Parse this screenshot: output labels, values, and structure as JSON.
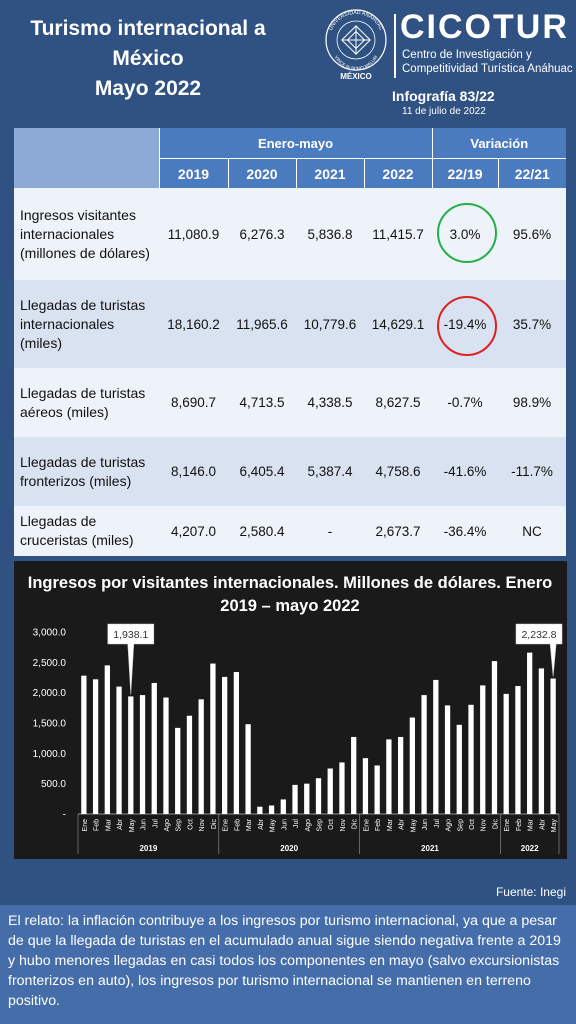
{
  "header": {
    "title_lines": [
      "Turismo internacional a",
      "México",
      "Mayo 2022"
    ],
    "logo_name": "CICOTUR",
    "logo_sub_lines": [
      "Centro de Investigación y",
      "Competitividad Turística Anáhuac"
    ],
    "seal_text": "UNIVERSIDAD ANÁHUAC",
    "seal_motto": "VINCE IN BONO MALUM",
    "seal_country": "MÉXICO",
    "infografia": "Infografía 83/22",
    "date": "11 de julio de 2022"
  },
  "table": {
    "group_headers": [
      "Enero-mayo",
      "Variación"
    ],
    "columns": [
      "2019",
      "2020",
      "2021",
      "2022",
      "22/19",
      "22/21"
    ],
    "rows": [
      {
        "label": "Ingresos visitantes internacionales (millones de dólares)",
        "values": [
          "11,080.9",
          "6,276.3",
          "5,836.8",
          "11,415.7",
          "3.0%",
          "95.6%"
        ]
      },
      {
        "label": "Llegadas de turistas internacionales (miles)",
        "values": [
          "18,160.2",
          "11,965.6",
          "10,779.6",
          "14,629.1",
          "-19.4%",
          "35.7%"
        ]
      },
      {
        "label": "Llegadas de turistas aéreos (miles)",
        "values": [
          "8,690.7",
          "4,713.5",
          "4,338.5",
          "8,627.5",
          "-0.7%",
          "98.9%"
        ]
      },
      {
        "label": "Llegadas de turistas fronterizos (miles)",
        "values": [
          "8,146.0",
          "6,405.4",
          "5,387.4",
          "4,758.6",
          "-41.6%",
          "-11.7%"
        ]
      },
      {
        "label": "Llegadas de cruceristas (miles)",
        "values": [
          "4,207.0",
          "2,580.4",
          "-",
          "2,673.7",
          "-36.4%",
          "NC"
        ]
      }
    ],
    "highlight_colors": {
      "positive": "#22b04a",
      "negative": "#e02020"
    }
  },
  "chart_data": {
    "type": "bar",
    "title": "Ingresos por visitantes internacionales. Millones de dólares. Enero 2019 – mayo 2022",
    "ylim": [
      0,
      3000
    ],
    "yticks": [
      "3,000.0",
      "2,500.0",
      "2,000.0",
      "1,500.0",
      "1,000.0",
      "500.0",
      "-"
    ],
    "month_labels": [
      "Ene",
      "Feb",
      "Mar",
      "Abr",
      "May",
      "Jun",
      "Jul",
      "Ago",
      "Sep",
      "Oct",
      "Nov",
      "Dic"
    ],
    "years": [
      "2019",
      "2020",
      "2021",
      "2022"
    ],
    "categories": [
      "Ene 2019",
      "Feb 2019",
      "Mar 2019",
      "Abr 2019",
      "May 2019",
      "Jun 2019",
      "Jul 2019",
      "Ago 2019",
      "Sep 2019",
      "Oct 2019",
      "Nov 2019",
      "Dic 2019",
      "Ene 2020",
      "Feb 2020",
      "Mar 2020",
      "Abr 2020",
      "May 2020",
      "Jun 2020",
      "Jul 2020",
      "Ago 2020",
      "Sep 2020",
      "Oct 2020",
      "Nov 2020",
      "Dic 2020",
      "Ene 2021",
      "Feb 2021",
      "Mar 2021",
      "Abr 2021",
      "May 2021",
      "Jun 2021",
      "Jul 2021",
      "Ago 2021",
      "Sep 2021",
      "Oct 2021",
      "Nov 2021",
      "Dic 2021",
      "Ene 2022",
      "Feb 2022",
      "Mar 2022",
      "Abr 2022",
      "May 2022"
    ],
    "values": [
      2280,
      2220,
      2450,
      2100,
      1938.1,
      1960,
      2160,
      1920,
      1420,
      1620,
      1890,
      2480,
      2260,
      2340,
      1480,
      120,
      140,
      240,
      480,
      500,
      590,
      750,
      850,
      1270,
      920,
      800,
      1230,
      1270,
      1590,
      1960,
      2210,
      1790,
      1470,
      1800,
      2120,
      2520,
      1980,
      2110,
      2660,
      2400,
      2232.8
    ],
    "annotations": [
      {
        "index": 4,
        "label": "1,938.1"
      },
      {
        "index": 40,
        "label": "2,232.8"
      }
    ],
    "bar_color": "#ffffff",
    "grid": false
  },
  "source": "Fuente: Inegi",
  "relato": "El relato: la inflación contribuye a los ingresos por turismo internacional, ya que a pesar de que la llegada de turistas en el acumulado anual sigue siendo negativa frente a 2019 y hubo menores llegadas en casi todos los componentes en mayo (salvo excursionistas fronterizos en auto), los ingresos por turismo internacional se mantienen en terreno positivo."
}
